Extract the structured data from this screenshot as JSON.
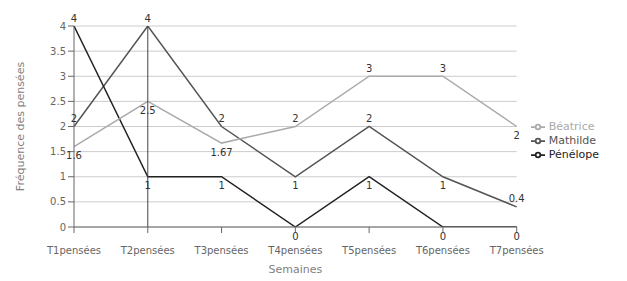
{
  "chart_data": {
    "type": "line",
    "categories": [
      "T1pensées",
      "T2pensées",
      "T3pensées",
      "T4pensées",
      "T5pensées",
      "T6pensées",
      "T7pensées"
    ],
    "series": [
      {
        "name": "Mathilde",
        "color": "#555555",
        "values": [
          2,
          4,
          2,
          1,
          2,
          1,
          0.4
        ]
      },
      {
        "name": "Pénélope",
        "color": "#222222",
        "values": [
          4,
          1,
          1,
          0,
          1,
          0,
          0
        ]
      },
      {
        "name": "Béatrice",
        "color": "#aaaaaa",
        "values": [
          1.6,
          2.5,
          1.67,
          2,
          3,
          3,
          2
        ]
      }
    ],
    "xlabel": "Semaines",
    "ylabel": "Fréquence des pensées",
    "ylim": [
      0,
      4
    ],
    "yticks": [
      0,
      0.5,
      1,
      1.5,
      2,
      2.5,
      3,
      3.5,
      4
    ],
    "grid": true,
    "legend": "right",
    "data_labels": true,
    "annotations": [
      {
        "type": "vline",
        "x": "T2pensées",
        "color": "#444444"
      }
    ]
  }
}
